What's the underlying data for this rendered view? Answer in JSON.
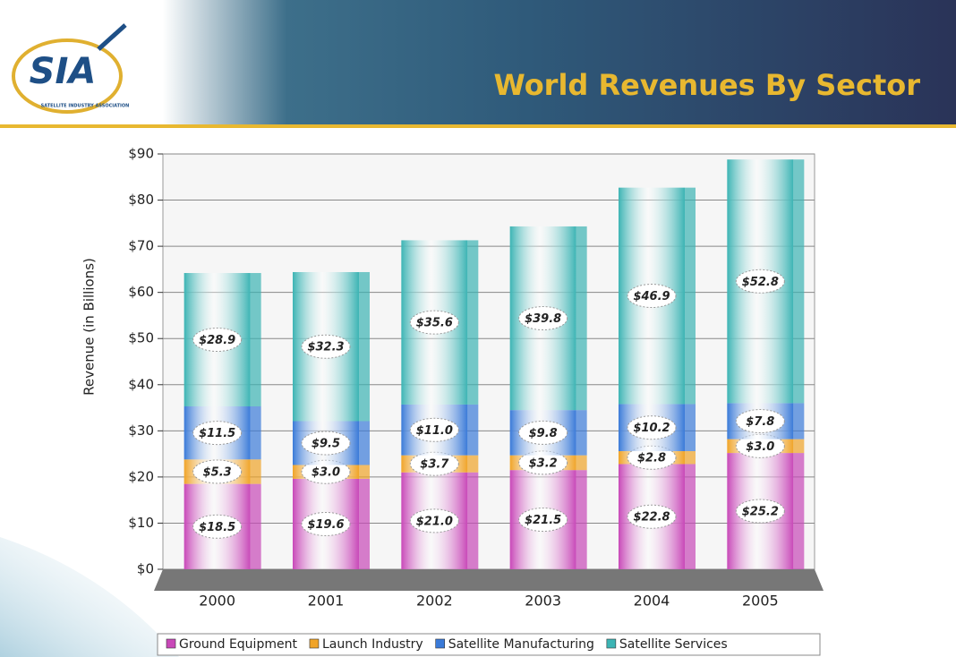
{
  "header": {
    "logo": "SIA",
    "logo_subtitle": "SATELLITE INDUSTRY ASSOCIATION"
  },
  "chart_data": {
    "type": "stacked_bar",
    "title": "World Revenues By Sector",
    "y_axis_label": "Revenue (in Billions)",
    "categories": [
      "2000",
      "2001",
      "2002",
      "2003",
      "2004",
      "2005"
    ],
    "series": [
      {
        "name": "Ground Equipment",
        "color": "#c848b8",
        "values": [
          18.5,
          19.6,
          21.0,
          21.5,
          22.8,
          25.2
        ],
        "value_labels": [
          "$18.5",
          "$19.6",
          "$21.0",
          "$21.5",
          "$22.8",
          "$25.2"
        ]
      },
      {
        "name": "Launch Industry",
        "color": "#f0a428",
        "values": [
          5.3,
          3.0,
          3.7,
          3.2,
          2.8,
          3.0
        ],
        "value_labels": [
          "$5.3",
          "$3.0",
          "$3.7",
          "$3.2",
          "$2.8",
          "$3.0"
        ]
      },
      {
        "name": "Satellite Manufacturing",
        "color": "#3a7ad8",
        "values": [
          11.5,
          9.5,
          11.0,
          9.8,
          10.2,
          7.8
        ],
        "value_labels": [
          "$11.5",
          "$9.5",
          "$11.0",
          "$9.8",
          "$10.2",
          "$7.8"
        ]
      },
      {
        "name": "Satellite Services",
        "color": "#3cb4b4",
        "values": [
          28.9,
          32.3,
          35.6,
          39.8,
          46.9,
          52.8
        ],
        "value_labels": [
          "$28.9",
          "$32.3",
          "$35.6",
          "$39.8",
          "$46.9",
          "$52.8"
        ]
      }
    ],
    "ylim": [
      0,
      90
    ],
    "yticks": [
      {
        "value": 0,
        "label": "$0"
      },
      {
        "value": 10,
        "label": "$10"
      },
      {
        "value": 20,
        "label": "$20"
      },
      {
        "value": 30,
        "label": "$30"
      },
      {
        "value": 40,
        "label": "$40"
      },
      {
        "value": 50,
        "label": "$50"
      },
      {
        "value": 60,
        "label": "$60"
      },
      {
        "value": 70,
        "label": "$70"
      },
      {
        "value": 80,
        "label": "$80"
      },
      {
        "value": 90,
        "label": "$90"
      }
    ],
    "grid": true,
    "legend": "bottom"
  }
}
